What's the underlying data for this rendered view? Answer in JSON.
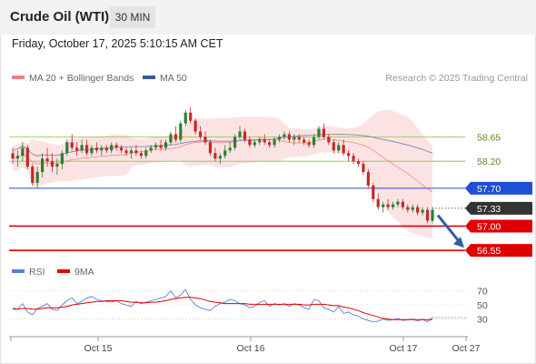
{
  "header": {
    "title": "Crude Oil (WTI)",
    "timeframe": "30 MIN",
    "timestamp": "Friday, October 17, 2025 5:10:15 AM CET"
  },
  "legend": {
    "main": [
      {
        "label": "MA 20 + Bollinger Bands",
        "color": "#f08080"
      },
      {
        "label": "MA 50",
        "color": "#3b5a9a"
      }
    ],
    "rsi": [
      {
        "label": "RSI",
        "color": "#5b7fd6"
      },
      {
        "label": "9MA",
        "color": "#e00000"
      }
    ]
  },
  "credit": "Research © 2025 Trading Central",
  "colors": {
    "up": "#2e7d32",
    "down": "#c62828",
    "resistance": "#8cc63f",
    "pivot": "#1f4fd6",
    "support": "#e00000",
    "last": "#333333",
    "arrow": "#2c5fa6",
    "bands": "#fbdada",
    "ma20": "#f08080",
    "ma50": "#8a8fb0"
  },
  "chart_data": [
    {
      "type": "candlestick",
      "panel": "price",
      "ylim": [
        56.3,
        59.5
      ],
      "x_ticks": [
        "Oct 15",
        "Oct 16",
        "Oct 17",
        "Oct 27"
      ],
      "key_levels": [
        {
          "label": "58.65",
          "value": 58.65,
          "kind": "resistance"
        },
        {
          "label": "58.20",
          "value": 58.2,
          "kind": "resistance"
        },
        {
          "label": "57.70",
          "value": 57.7,
          "kind": "pivot"
        },
        {
          "label": "57.33",
          "value": 57.33,
          "kind": "last"
        },
        {
          "label": "57.00",
          "value": 57.0,
          "kind": "support"
        },
        {
          "label": "56.55",
          "value": 56.55,
          "kind": "support"
        }
      ],
      "forecast_arrow": {
        "from": 57.2,
        "to": 56.6
      },
      "candles": [
        [
          58.35,
          58.45,
          58.15,
          58.25
        ],
        [
          58.25,
          58.4,
          58.1,
          58.3
        ],
        [
          58.3,
          58.55,
          58.2,
          58.45
        ],
        [
          58.45,
          58.5,
          58.05,
          58.1
        ],
        [
          58.1,
          58.15,
          57.75,
          57.8
        ],
        [
          57.8,
          58.1,
          57.7,
          58.0
        ],
        [
          58.0,
          58.35,
          57.9,
          58.25
        ],
        [
          58.25,
          58.45,
          58.1,
          58.2
        ],
        [
          58.2,
          58.35,
          58.0,
          58.1
        ],
        [
          58.1,
          58.25,
          57.95,
          58.15
        ],
        [
          58.15,
          58.4,
          58.05,
          58.35
        ],
        [
          58.35,
          58.6,
          58.3,
          58.55
        ],
        [
          58.55,
          58.7,
          58.4,
          58.45
        ],
        [
          58.45,
          58.55,
          58.3,
          58.4
        ],
        [
          58.4,
          58.6,
          58.35,
          58.5
        ],
        [
          58.5,
          58.6,
          58.3,
          58.35
        ],
        [
          58.35,
          58.5,
          58.3,
          58.45
        ],
        [
          58.45,
          58.55,
          58.35,
          58.4
        ],
        [
          58.4,
          58.5,
          58.3,
          58.45
        ],
        [
          58.45,
          58.5,
          58.35,
          58.4
        ],
        [
          58.4,
          58.55,
          58.35,
          58.5
        ],
        [
          58.5,
          58.55,
          58.4,
          58.45
        ],
        [
          58.45,
          58.5,
          58.35,
          58.4
        ],
        [
          58.4,
          58.45,
          58.3,
          58.35
        ],
        [
          58.35,
          58.45,
          58.25,
          58.4
        ],
        [
          58.4,
          58.5,
          58.3,
          58.35
        ],
        [
          58.35,
          58.4,
          58.25,
          58.3
        ],
        [
          58.3,
          58.45,
          58.25,
          58.4
        ],
        [
          58.4,
          58.5,
          58.35,
          58.45
        ],
        [
          58.45,
          58.55,
          58.4,
          58.5
        ],
        [
          58.5,
          58.6,
          58.4,
          58.45
        ],
        [
          58.45,
          58.6,
          58.4,
          58.55
        ],
        [
          58.55,
          58.75,
          58.5,
          58.7
        ],
        [
          58.7,
          58.85,
          58.55,
          58.6
        ],
        [
          58.6,
          58.95,
          58.55,
          58.9
        ],
        [
          58.9,
          59.15,
          58.85,
          59.1
        ],
        [
          59.1,
          59.2,
          58.9,
          58.95
        ],
        [
          58.95,
          59.0,
          58.7,
          58.75
        ],
        [
          58.75,
          58.85,
          58.6,
          58.65
        ],
        [
          58.65,
          58.75,
          58.5,
          58.55
        ],
        [
          58.55,
          58.6,
          58.3,
          58.35
        ],
        [
          58.35,
          58.45,
          58.2,
          58.25
        ],
        [
          58.25,
          58.35,
          58.15,
          58.3
        ],
        [
          58.3,
          58.5,
          58.25,
          58.4
        ],
        [
          58.4,
          58.55,
          58.35,
          58.45
        ],
        [
          58.45,
          58.7,
          58.4,
          58.65
        ],
        [
          58.65,
          58.85,
          58.6,
          58.75
        ],
        [
          58.75,
          58.8,
          58.55,
          58.6
        ],
        [
          58.6,
          58.65,
          58.45,
          58.5
        ],
        [
          58.5,
          58.6,
          58.45,
          58.55
        ],
        [
          58.55,
          58.65,
          58.5,
          58.6
        ],
        [
          58.6,
          58.7,
          58.5,
          58.55
        ],
        [
          58.55,
          58.6,
          58.45,
          58.5
        ],
        [
          58.5,
          58.65,
          58.45,
          58.6
        ],
        [
          58.6,
          58.7,
          58.55,
          58.65
        ],
        [
          58.65,
          58.75,
          58.6,
          58.7
        ],
        [
          58.7,
          58.75,
          58.55,
          58.6
        ],
        [
          58.6,
          58.7,
          58.5,
          58.65
        ],
        [
          58.65,
          58.7,
          58.55,
          58.6
        ],
        [
          58.6,
          58.65,
          58.5,
          58.55
        ],
        [
          58.55,
          58.6,
          58.45,
          58.5
        ],
        [
          58.5,
          58.7,
          58.45,
          58.65
        ],
        [
          58.65,
          58.85,
          58.6,
          58.8
        ],
        [
          58.8,
          58.9,
          58.6,
          58.65
        ],
        [
          58.65,
          58.7,
          58.5,
          58.55
        ],
        [
          58.55,
          58.6,
          58.35,
          58.4
        ],
        [
          58.4,
          58.55,
          58.35,
          58.5
        ],
        [
          58.5,
          58.6,
          58.3,
          58.35
        ],
        [
          58.35,
          58.4,
          58.2,
          58.3
        ],
        [
          58.3,
          58.35,
          58.15,
          58.2
        ],
        [
          58.2,
          58.25,
          58.1,
          58.15
        ],
        [
          58.15,
          58.2,
          57.95,
          58.0
        ],
        [
          58.0,
          58.05,
          57.7,
          57.75
        ],
        [
          57.75,
          57.8,
          57.45,
          57.5
        ],
        [
          57.5,
          57.6,
          57.3,
          57.35
        ],
        [
          57.35,
          57.45,
          57.25,
          57.4
        ],
        [
          57.4,
          57.5,
          57.3,
          57.35
        ],
        [
          57.35,
          57.45,
          57.3,
          57.4
        ],
        [
          57.4,
          57.5,
          57.35,
          57.45
        ],
        [
          57.45,
          57.5,
          57.3,
          57.35
        ],
        [
          57.35,
          57.4,
          57.25,
          57.3
        ],
        [
          57.3,
          57.4,
          57.25,
          57.35
        ],
        [
          57.35,
          57.4,
          57.2,
          57.25
        ],
        [
          57.25,
          57.35,
          57.2,
          57.3
        ],
        [
          57.3,
          57.35,
          57.05,
          57.1
        ],
        [
          57.1,
          57.35,
          57.05,
          57.3
        ]
      ]
    },
    {
      "type": "line",
      "panel": "rsi",
      "ylim": [
        10,
        80
      ],
      "y_ticks": [
        "70",
        "50",
        "30"
      ],
      "series": [
        {
          "name": "RSI",
          "values": [
            46,
            44,
            52,
            40,
            36,
            45,
            48,
            52,
            44,
            42,
            50,
            56,
            60,
            52,
            55,
            60,
            62,
            58,
            56,
            55,
            54,
            56,
            52,
            50,
            48,
            55,
            52,
            54,
            56,
            58,
            60,
            62,
            70,
            60,
            64,
            72,
            58,
            50,
            46,
            44,
            42,
            48,
            52,
            54,
            58,
            56,
            52,
            50,
            46,
            48,
            54,
            56,
            48,
            52,
            50,
            52,
            48,
            52,
            50,
            46,
            44,
            58,
            56,
            46,
            44,
            40,
            48,
            38,
            40,
            36,
            34,
            30,
            28,
            26,
            27,
            30,
            28,
            29,
            31,
            28,
            29,
            30,
            27,
            30,
            26,
            32
          ]
        },
        {
          "name": "9MA",
          "values": [
            44,
            44,
            45,
            45,
            44,
            44,
            45,
            46,
            46,
            46,
            47,
            48,
            50,
            51,
            52,
            53,
            54,
            55,
            55,
            56,
            56,
            56,
            56,
            55,
            54,
            54,
            53,
            53,
            54,
            54,
            55,
            56,
            58,
            59,
            60,
            61,
            61,
            60,
            59,
            57,
            55,
            54,
            53,
            52,
            52,
            52,
            52,
            52,
            51,
            51,
            51,
            51,
            51,
            51,
            51,
            51,
            51,
            51,
            51,
            50,
            50,
            51,
            51,
            51,
            50,
            49,
            49,
            47,
            46,
            44,
            42,
            39,
            37,
            35,
            33,
            31,
            30,
            29,
            29,
            29,
            29,
            29,
            29,
            29,
            29,
            29
          ]
        }
      ]
    }
  ]
}
